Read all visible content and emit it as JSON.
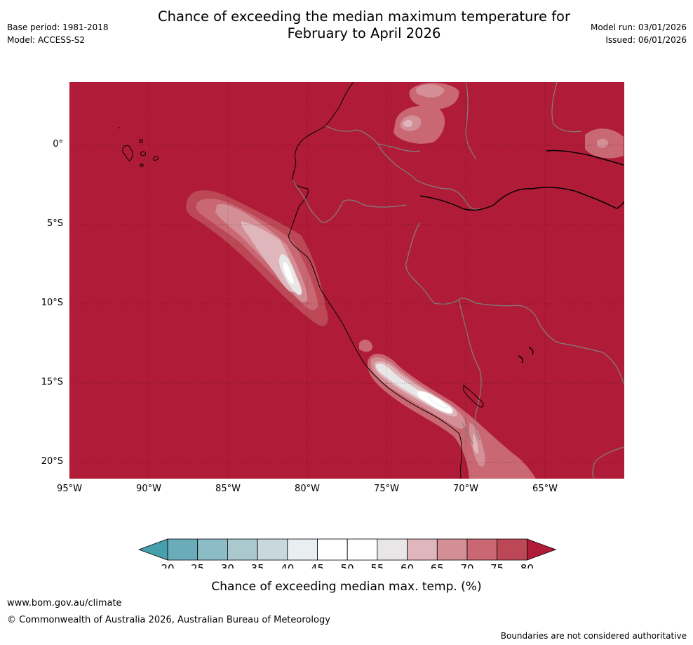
{
  "header": {
    "title_line1": "Chance of exceeding the median maximum temperature for",
    "title_line2": "February to April 2026",
    "base_period": "Base period: 1981-2018",
    "model": "Model: ACCESS-S2",
    "model_run": "Model run: 03/01/2026",
    "issued": "Issued: 06/01/2026"
  },
  "map": {
    "lat_labels": [
      "0°",
      "5°S",
      "10°S",
      "15°S",
      "20°S"
    ],
    "lon_labels": [
      "95°W",
      "90°W",
      "85°W",
      "80°W",
      "75°W",
      "70°W",
      "65°W"
    ],
    "background_class": "80",
    "ocean_color": "#b01c38"
  },
  "colorbar": {
    "title": "Chance of exceeding median max. temp. (%)",
    "ticks": [
      "20",
      "25",
      "30",
      "35",
      "40",
      "45",
      "50",
      "55",
      "60",
      "65",
      "70",
      "75",
      "80"
    ],
    "colors": [
      "#46a0ac",
      "#6aacb9",
      "#8cbcc6",
      "#aac9cf",
      "#c9d8dd",
      "#e9eff1",
      "#ffffff",
      "#ffffff",
      "#e8e6e6",
      "#dfb6bb",
      "#d48e96",
      "#c96873",
      "#bc4856",
      "#b01c38"
    ]
  },
  "footer": {
    "url": "www.bom.gov.au/climate",
    "copyright": "© Commonwealth of Australia 2026, Australian Bureau of Meteorology",
    "disclaimer": "Boundaries are not considered authoritative"
  }
}
